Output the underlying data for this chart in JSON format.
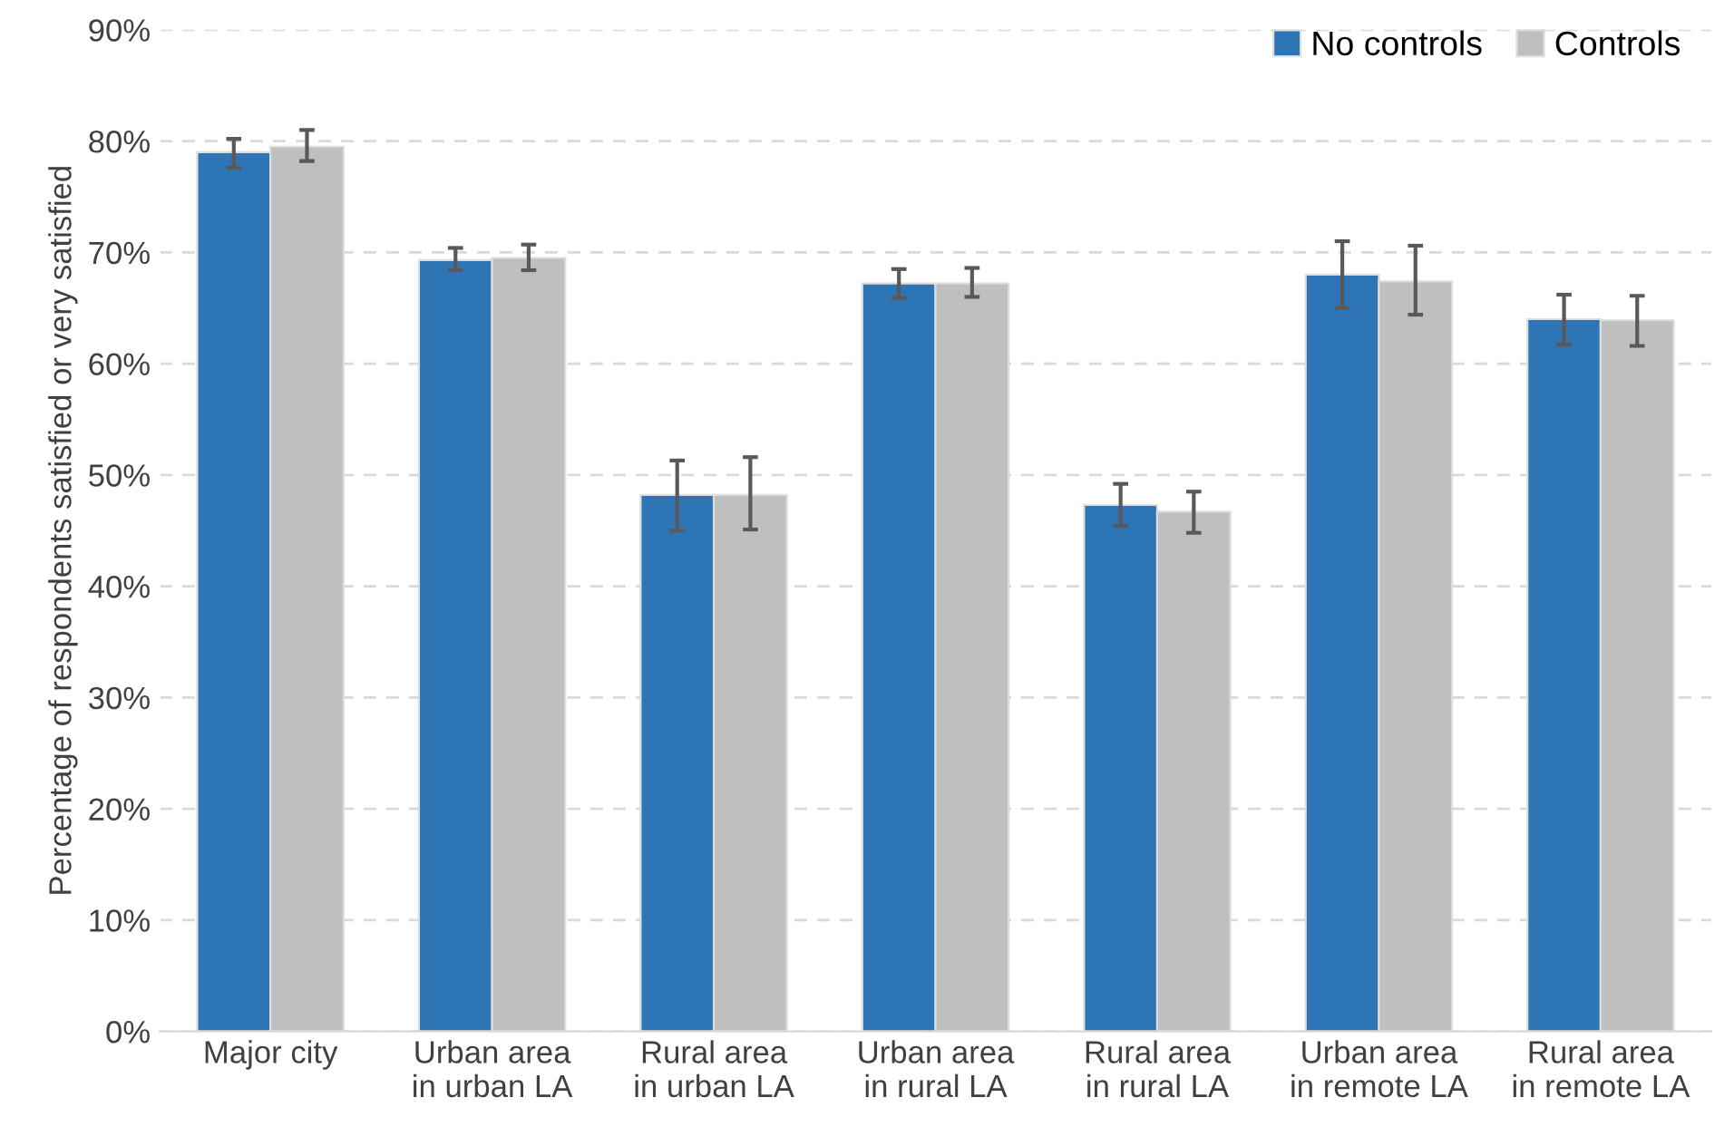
{
  "chart_data": {
    "type": "bar",
    "ylabel": "Percentage of respondents satisfied or very satisfied",
    "categories": [
      "Major city",
      "Urban area\nin urban LA",
      "Rural area\nin urban LA",
      "Urban area\nin rural LA",
      "Rural area\nin rural LA",
      "Urban area\nin remote LA",
      "Rural area\nin remote LA"
    ],
    "series": [
      {
        "name": "No controls",
        "color": "#2e75b6",
        "values": [
          79.0,
          69.3,
          48.2,
          67.2,
          47.3,
          68.0,
          64.0
        ],
        "errors": [
          [
            77.6,
            80.2
          ],
          [
            68.4,
            70.4
          ],
          [
            45.0,
            51.3
          ],
          [
            65.9,
            68.5
          ],
          [
            45.4,
            49.2
          ],
          [
            65.0,
            71.0
          ],
          [
            61.7,
            66.2
          ]
        ]
      },
      {
        "name": "Controls",
        "color": "#bfbfbf",
        "values": [
          79.5,
          69.5,
          48.2,
          67.2,
          46.7,
          67.4,
          63.9
        ],
        "errors": [
          [
            78.2,
            81.0
          ],
          [
            68.4,
            70.7
          ],
          [
            45.1,
            51.6
          ],
          [
            66.0,
            68.6
          ],
          [
            44.8,
            48.5
          ],
          [
            64.4,
            70.6
          ],
          [
            61.6,
            66.1
          ]
        ]
      }
    ],
    "ylim": [
      0,
      90
    ],
    "yticks": [
      {
        "value": 0,
        "label": "0%"
      },
      {
        "value": 10,
        "label": "10%"
      },
      {
        "value": 20,
        "label": "20%"
      },
      {
        "value": 30,
        "label": "30%"
      },
      {
        "value": 40,
        "label": "40%"
      },
      {
        "value": 50,
        "label": "50%"
      },
      {
        "value": 60,
        "label": "60%"
      },
      {
        "value": 70,
        "label": "70%"
      },
      {
        "value": 80,
        "label": "80%"
      },
      {
        "value": 90,
        "label": "90%"
      }
    ],
    "grid": "y",
    "legend": "top right"
  }
}
